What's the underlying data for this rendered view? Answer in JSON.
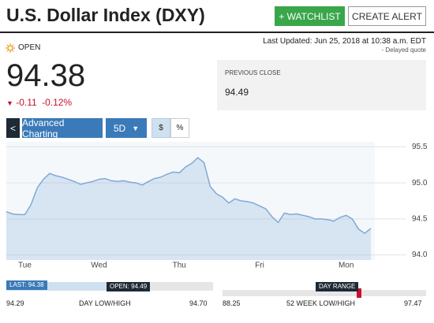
{
  "header": {
    "title": "U.S. Dollar Index (DXY)",
    "watchlist_button": "+ WATCHLIST",
    "alert_button": "CREATE ALERT"
  },
  "status": {
    "market_state": "OPEN",
    "last_updated": "Last Updated: Jun 25, 2018 at 10:38 a.m. EDT",
    "delay_note": "-  Delayed quote"
  },
  "quote": {
    "price": "94.38",
    "change": "-0.11",
    "change_percent": "-0.12%"
  },
  "previous_close": {
    "label": "PREVIOUS CLOSE",
    "value": "94.49"
  },
  "toolbar": {
    "back": "<",
    "advanced": "Advanced Charting",
    "period": "5D",
    "dollar": "$",
    "percent": "%"
  },
  "chart_data": {
    "type": "area",
    "categories": [
      null,
      null,
      null,
      "Tue",
      null,
      null,
      null,
      null,
      null,
      null,
      null,
      null,
      null,
      null,
      null,
      "Wed",
      null,
      null,
      null,
      null,
      null,
      null,
      null,
      null,
      null,
      null,
      null,
      null,
      "Thu",
      null,
      null,
      null,
      null,
      null,
      null,
      null,
      null,
      null,
      null,
      null,
      null,
      "Fri",
      null,
      null,
      null,
      null,
      null,
      null,
      null,
      null,
      null,
      null,
      null,
      null,
      null,
      "Mon",
      null,
      null,
      null,
      null
    ],
    "values": [
      94.6,
      94.57,
      94.56,
      94.56,
      94.7,
      94.93,
      95.05,
      95.13,
      95.1,
      95.08,
      95.05,
      95.02,
      94.98,
      95.0,
      95.02,
      95.05,
      95.06,
      95.03,
      95.02,
      95.03,
      95.01,
      95.0,
      94.97,
      95.02,
      95.06,
      95.08,
      95.12,
      95.15,
      95.14,
      95.22,
      95.27,
      95.35,
      95.28,
      94.95,
      94.85,
      94.8,
      94.72,
      94.78,
      94.75,
      94.74,
      94.72,
      94.68,
      94.64,
      94.53,
      94.45,
      94.58,
      94.56,
      94.57,
      94.55,
      94.53,
      94.5,
      94.5,
      94.49,
      94.47,
      94.52,
      94.55,
      94.5,
      94.36,
      94.3,
      94.37
    ],
    "color": "#7fa9d6",
    "ylim": [
      93.93,
      95.57
    ],
    "yticks": [
      95.5,
      {
        "value": 95,
        "label": "95.0"
      },
      94.5,
      {
        "value": 94,
        "label": "94.0"
      }
    ],
    "grid": true
  },
  "day_range": {
    "last_label": "LAST: 94.38",
    "open_label": "OPEN: 94.49",
    "low": "94.29",
    "label": "DAY LOW/HIGH",
    "high": "94.70"
  },
  "week52_range": {
    "marker_label": "DAY RANGE",
    "low": "88.25",
    "label": "52 WEEK LOW/HIGH",
    "high": "97.47"
  }
}
